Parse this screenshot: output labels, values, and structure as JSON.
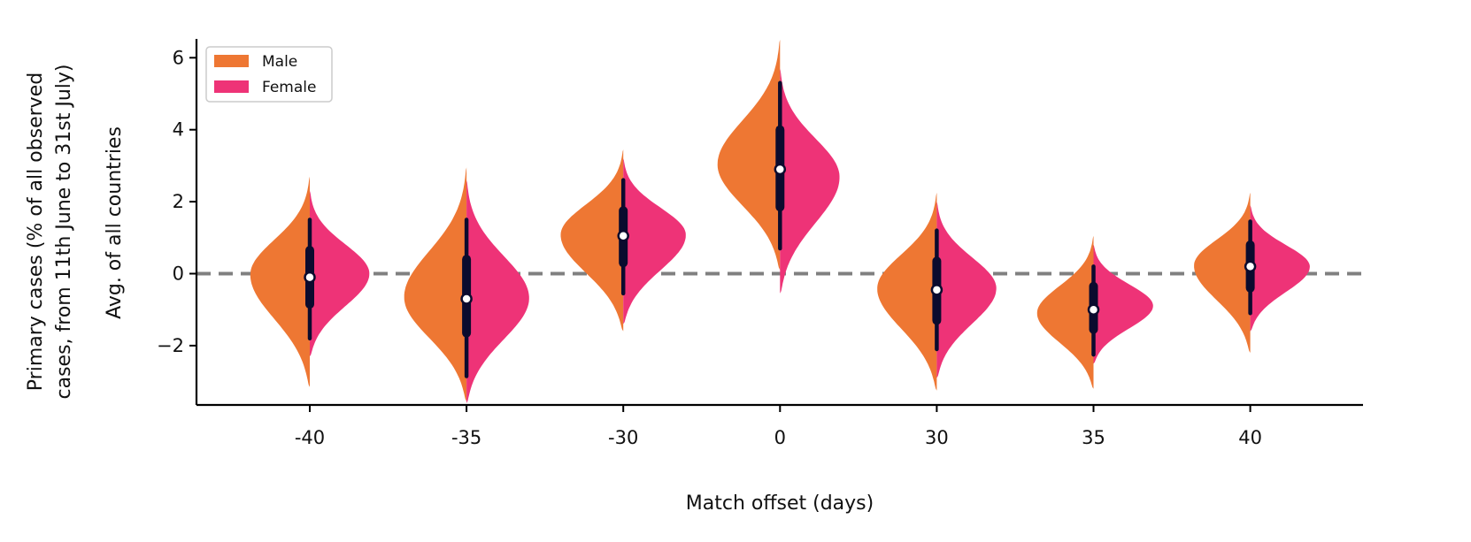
{
  "chart_data": {
    "type": "violin",
    "xlabel": "Match offset (days)",
    "ylabel_outer": [
      "Primary cases (% of all observed",
      "cases, from 11th June to 31st July)"
    ],
    "ylabel_inner": "Avg. of all countries",
    "categories": [
      "-40",
      "-35",
      "-30",
      "0",
      "30",
      "35",
      "40"
    ],
    "ylim": [
      -3.6,
      6.5
    ],
    "yticks": [
      -2,
      0,
      2,
      4,
      6
    ],
    "yticklabels": [
      "−2",
      "0",
      "2",
      "4",
      "6"
    ],
    "reference_line": {
      "y": 0,
      "style": "dashed",
      "color": "#808080"
    },
    "legend": {
      "position": "top-left",
      "entries": [
        {
          "label": "Male",
          "color": "#ee7733"
        },
        {
          "label": "Female",
          "color": "#ee3377"
        }
      ]
    },
    "series": [
      {
        "name": "Male",
        "color": "#ee7733"
      },
      {
        "name": "Female",
        "color": "#ee3377"
      }
    ],
    "violins": [
      {
        "category": "-40",
        "median": -0.1,
        "q1": -0.85,
        "q3": 0.65,
        "whisker_low": -1.8,
        "whisker_high": 1.5,
        "male": {
          "min": -3.15,
          "max": 2.7,
          "mode": 0.0,
          "width": 0.38
        },
        "female": {
          "min": -2.3,
          "max": 2.3,
          "mode": 0.0,
          "width": 0.38
        }
      },
      {
        "category": "-35",
        "median": -0.7,
        "q1": -1.65,
        "q3": 0.4,
        "whisker_low": -2.85,
        "whisker_high": 1.5,
        "male": {
          "min": -3.55,
          "max": 2.95,
          "mode": -0.7,
          "width": 0.4
        },
        "female": {
          "min": -3.6,
          "max": 2.6,
          "mode": -0.7,
          "width": 0.4
        }
      },
      {
        "category": "-30",
        "median": 1.05,
        "q1": 0.3,
        "q3": 1.75,
        "whisker_low": -0.55,
        "whisker_high": 2.6,
        "male": {
          "min": -1.6,
          "max": 3.45,
          "mode": 1.1,
          "width": 0.4
        },
        "female": {
          "min": -1.4,
          "max": 3.2,
          "mode": 1.1,
          "width": 0.4
        }
      },
      {
        "category": "0",
        "median": 2.9,
        "q1": 1.85,
        "q3": 4.0,
        "whisker_low": 0.7,
        "whisker_high": 5.3,
        "male": {
          "min": 0.1,
          "max": 6.5,
          "mode": 3.0,
          "width": 0.4
        },
        "female": {
          "min": -0.55,
          "max": 5.7,
          "mode": 2.7,
          "width": 0.38
        }
      },
      {
        "category": "30",
        "median": -0.45,
        "q1": -1.3,
        "q3": 0.35,
        "whisker_low": -2.1,
        "whisker_high": 1.2,
        "male": {
          "min": -3.25,
          "max": 2.25,
          "mode": -0.4,
          "width": 0.38
        },
        "female": {
          "min": -2.9,
          "max": 2.0,
          "mode": -0.4,
          "width": 0.38
        }
      },
      {
        "category": "35",
        "median": -1.0,
        "q1": -1.55,
        "q3": -0.35,
        "whisker_low": -2.25,
        "whisker_high": 0.2,
        "male": {
          "min": -3.2,
          "max": 1.05,
          "mode": -1.1,
          "width": 0.36
        },
        "female": {
          "min": -2.5,
          "max": 0.8,
          "mode": -0.9,
          "width": 0.38
        }
      },
      {
        "category": "40",
        "median": 0.2,
        "q1": -0.4,
        "q3": 0.8,
        "whisker_low": -1.1,
        "whisker_high": 1.45,
        "male": {
          "min": -2.2,
          "max": 2.25,
          "mode": 0.25,
          "width": 0.36
        },
        "female": {
          "min": -1.6,
          "max": 1.9,
          "mode": 0.2,
          "width": 0.38
        }
      }
    ]
  }
}
